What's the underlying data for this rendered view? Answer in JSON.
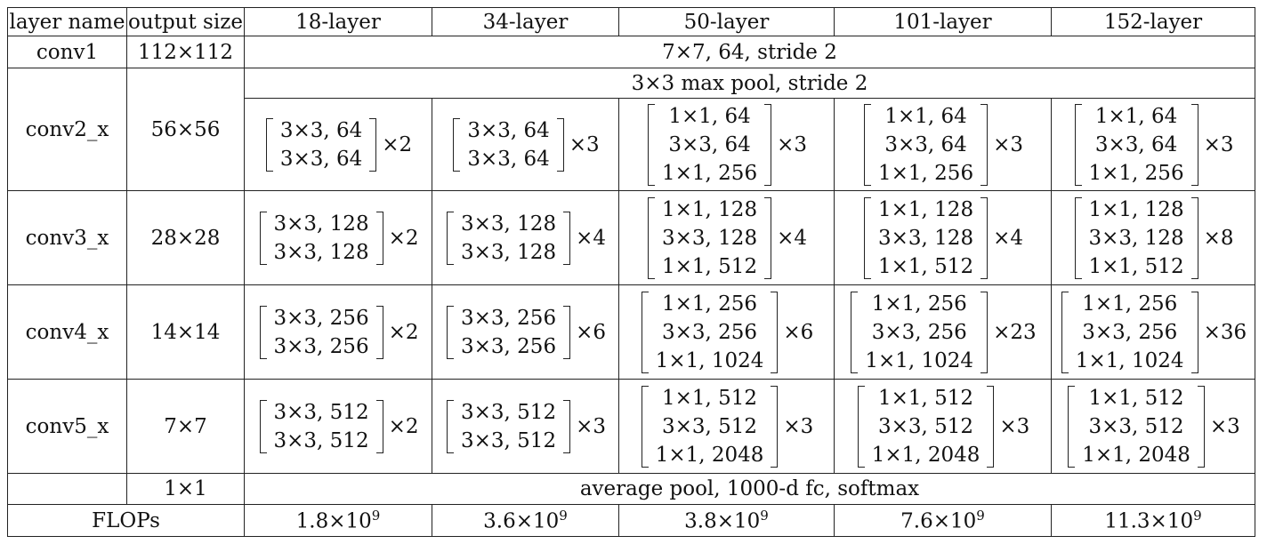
{
  "columns": [
    "layer name",
    "output size",
    "18-layer",
    "34-layer",
    "50-layer",
    "101-layer",
    "152-layer"
  ],
  "conv1": {
    "name": "conv1",
    "size": "112×112",
    "spec": "7×7, 64, stride 2"
  },
  "pool": {
    "spec": "3×3 max pool, stride 2"
  },
  "stages": [
    {
      "name": "conv2_x",
      "size": "56×56",
      "blocks": [
        {
          "lines": [
            "3×3, 64",
            "3×3, 64"
          ],
          "mult": "×2"
        },
        {
          "lines": [
            "3×3, 64",
            "3×3, 64"
          ],
          "mult": "×3"
        },
        {
          "lines": [
            "1×1, 64",
            "3×3, 64",
            "1×1, 256"
          ],
          "mult": "×3"
        },
        {
          "lines": [
            "1×1, 64",
            "3×3, 64",
            "1×1, 256"
          ],
          "mult": "×3"
        },
        {
          "lines": [
            "1×1, 64",
            "3×3, 64",
            "1×1, 256"
          ],
          "mult": "×3"
        }
      ]
    },
    {
      "name": "conv3_x",
      "size": "28×28",
      "blocks": [
        {
          "lines": [
            "3×3, 128",
            "3×3, 128"
          ],
          "mult": "×2"
        },
        {
          "lines": [
            "3×3, 128",
            "3×3, 128"
          ],
          "mult": "×4"
        },
        {
          "lines": [
            "1×1, 128",
            "3×3, 128",
            "1×1, 512"
          ],
          "mult": "×4"
        },
        {
          "lines": [
            "1×1, 128",
            "3×3, 128",
            "1×1, 512"
          ],
          "mult": "×4"
        },
        {
          "lines": [
            "1×1, 128",
            "3×3, 128",
            "1×1, 512"
          ],
          "mult": "×8"
        }
      ]
    },
    {
      "name": "conv4_x",
      "size": "14×14",
      "blocks": [
        {
          "lines": [
            "3×3, 256",
            "3×3, 256"
          ],
          "mult": "×2"
        },
        {
          "lines": [
            "3×3, 256",
            "3×3, 256"
          ],
          "mult": "×6"
        },
        {
          "lines": [
            "1×1, 256",
            "3×3, 256",
            "1×1, 1024"
          ],
          "mult": "×6"
        },
        {
          "lines": [
            "1×1, 256",
            "3×3, 256",
            "1×1, 1024"
          ],
          "mult": "×23"
        },
        {
          "lines": [
            "1×1, 256",
            "3×3, 256",
            "1×1, 1024"
          ],
          "mult": "×36"
        }
      ]
    },
    {
      "name": "conv5_x",
      "size": "7×7",
      "blocks": [
        {
          "lines": [
            "3×3, 512",
            "3×3, 512"
          ],
          "mult": "×2"
        },
        {
          "lines": [
            "3×3, 512",
            "3×3, 512"
          ],
          "mult": "×3"
        },
        {
          "lines": [
            "1×1, 512",
            "3×3, 512",
            "1×1, 2048"
          ],
          "mult": "×3"
        },
        {
          "lines": [
            "1×1, 512",
            "3×3, 512",
            "1×1, 2048"
          ],
          "mult": "×3"
        },
        {
          "lines": [
            "1×1, 512",
            "3×3, 512",
            "1×1, 2048"
          ],
          "mult": "×3"
        }
      ]
    }
  ],
  "final": {
    "size": "1×1",
    "spec": "average pool, 1000-d fc, softmax"
  },
  "flops": {
    "label": "FLOPs",
    "values": [
      {
        "mantissa": "1.8×10",
        "exp": "9"
      },
      {
        "mantissa": "3.6×10",
        "exp": "9"
      },
      {
        "mantissa": "3.8×10",
        "exp": "9"
      },
      {
        "mantissa": "7.6×10",
        "exp": "9"
      },
      {
        "mantissa": "11.3×10",
        "exp": "9"
      }
    ]
  }
}
